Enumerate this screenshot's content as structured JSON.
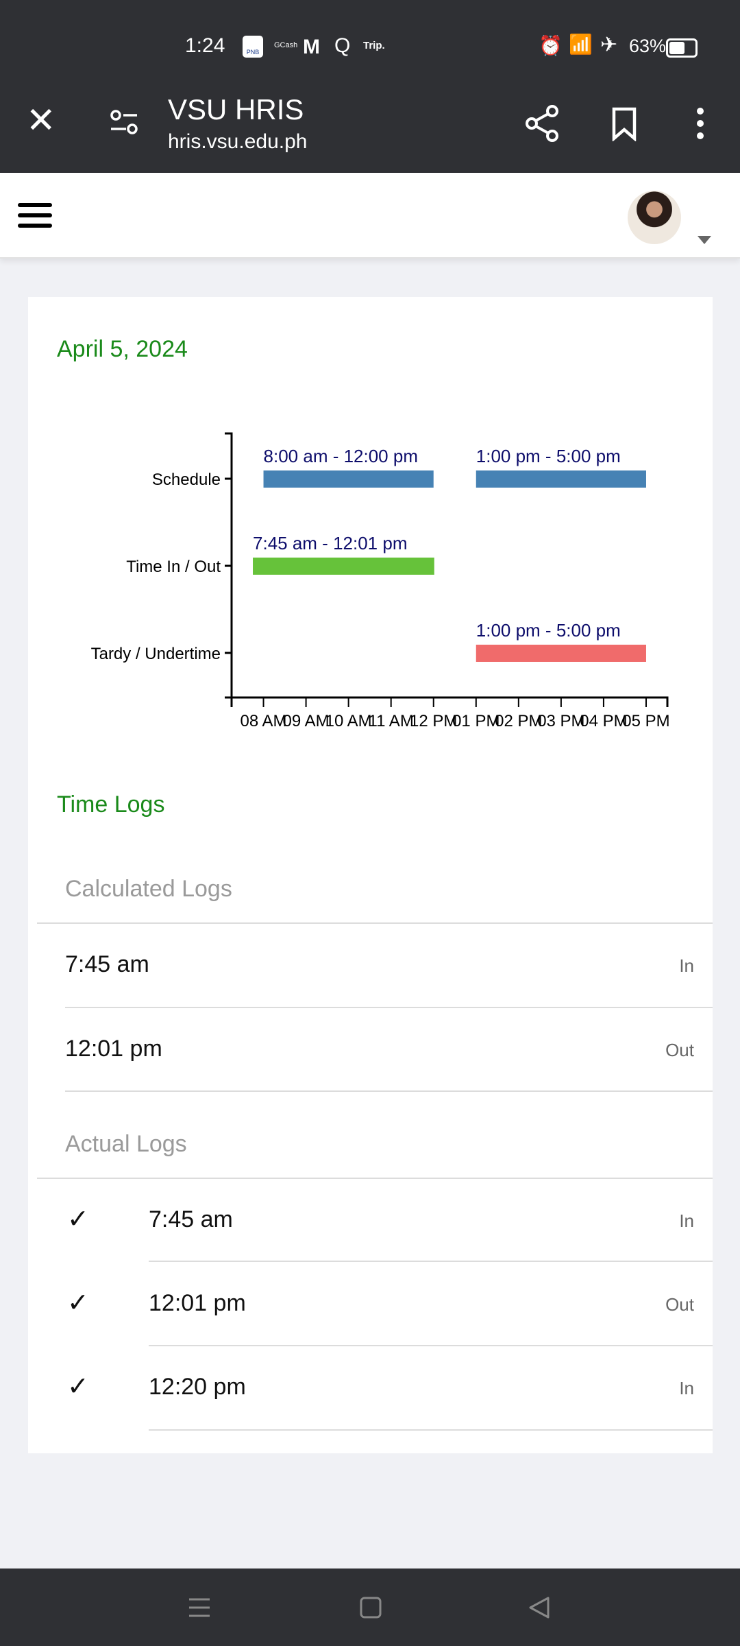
{
  "status_bar": {
    "time": "1:24",
    "notif_icons": [
      "PNB",
      "GCash",
      "M",
      "Q",
      "Trip."
    ],
    "battery": "63%"
  },
  "browser": {
    "title": "VSU HRIS",
    "url": "hris.vsu.edu.ph"
  },
  "card": {
    "date": "April 5, 2024",
    "time_logs_title": "Time Logs",
    "calculated_title": "Calculated Logs",
    "calculated": [
      {
        "time": "7:45 am",
        "dir": "In"
      },
      {
        "time": "12:01 pm",
        "dir": "Out"
      }
    ],
    "actual_title": "Actual Logs",
    "actual": [
      {
        "time": "7:45 am",
        "dir": "In",
        "checked": true
      },
      {
        "time": "12:01 pm",
        "dir": "Out",
        "checked": true
      },
      {
        "time": "12:20 pm",
        "dir": "In",
        "checked": true
      }
    ]
  },
  "chart_data": {
    "type": "bar",
    "orientation": "horizontal-timeline",
    "categories": [
      "Schedule",
      "Time In / Out",
      "Tardy / Undertime"
    ],
    "x_ticks": [
      "08 AM",
      "09 AM",
      "10 AM",
      "11 AM",
      "12 PM",
      "01 PM",
      "02 PM",
      "03 PM",
      "04 PM",
      "05 PM"
    ],
    "xlim_hours": [
      7.25,
      17.5
    ],
    "grid": false,
    "segments": [
      {
        "category": "Schedule",
        "start": 8,
        "end": 12,
        "label": "8:00 am - 12:00 pm",
        "color": "#4682b4"
      },
      {
        "category": "Schedule",
        "start": 13,
        "end": 17,
        "label": "1:00 pm - 5:00 pm",
        "color": "#4682b4"
      },
      {
        "category": "Time In / Out",
        "start": 7.75,
        "end": 12.0167,
        "label": "7:45 am - 12:01 pm",
        "color": "#66c23a"
      },
      {
        "category": "Tardy / Undertime",
        "start": 13,
        "end": 17,
        "label": "1:00 pm - 5:00 pm",
        "color": "#f06b6b"
      }
    ],
    "label_color": "#0d0d6b"
  }
}
